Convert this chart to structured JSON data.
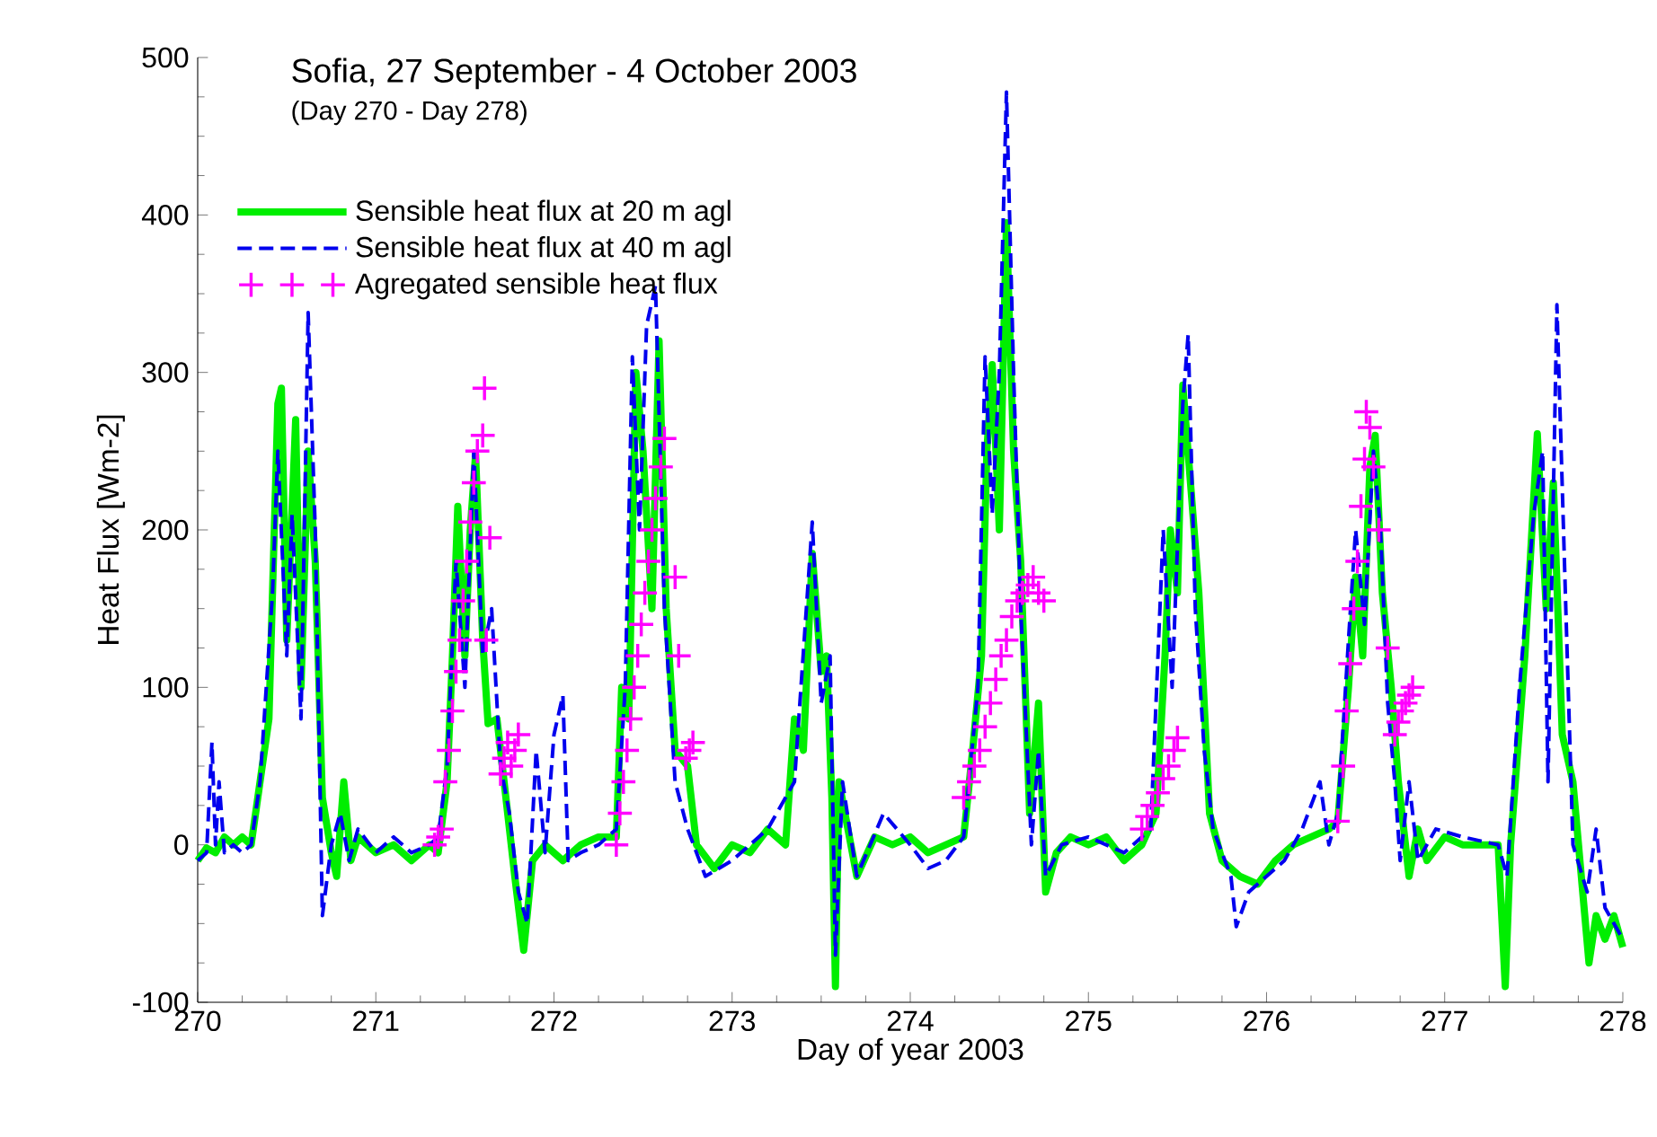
{
  "chart_data": {
    "type": "line",
    "title": "Sofia, 27 September - 4 October 2003",
    "subtitle": "(Day 270 - Day 278)",
    "xlabel": "Day of year 2003",
    "ylabel": "Heat Flux  [Wm-2]",
    "xlim": [
      270,
      278
    ],
    "xticks": [
      270,
      271,
      272,
      273,
      274,
      275,
      276,
      277,
      278
    ],
    "ylim": [
      -100,
      500
    ],
    "yticks": [
      -100,
      0,
      100,
      200,
      300,
      400,
      500
    ],
    "legend": "top left",
    "series": [
      {
        "name": "Sensible heat flux at 20 m agl",
        "color": "#00ee00",
        "line_style": "solid",
        "x": [
          270.0,
          270.05,
          270.1,
          270.15,
          270.2,
          270.25,
          270.3,
          270.35,
          270.4,
          270.45,
          270.47,
          270.5,
          270.55,
          270.58,
          270.62,
          270.66,
          270.7,
          270.75,
          270.78,
          270.82,
          270.86,
          270.9,
          271.0,
          271.1,
          271.2,
          271.3,
          271.35,
          271.4,
          271.43,
          271.46,
          271.5,
          271.53,
          271.56,
          271.6,
          271.63,
          271.68,
          271.72,
          271.78,
          271.83,
          271.88,
          271.95,
          272.05,
          272.15,
          272.25,
          272.35,
          272.38,
          272.42,
          272.46,
          272.5,
          272.55,
          272.59,
          272.63,
          272.68,
          272.75,
          272.8,
          272.9,
          273.0,
          273.1,
          273.2,
          273.3,
          273.35,
          273.4,
          273.45,
          273.5,
          273.53,
          273.56,
          273.58,
          273.6,
          273.65,
          273.7,
          273.8,
          273.9,
          274.0,
          274.1,
          274.2,
          274.3,
          274.35,
          274.4,
          274.43,
          274.46,
          274.5,
          274.54,
          274.58,
          274.62,
          274.67,
          274.72,
          274.76,
          274.82,
          274.9,
          275.0,
          275.1,
          275.2,
          275.3,
          275.38,
          275.43,
          275.46,
          275.5,
          275.53,
          275.58,
          275.62,
          275.68,
          275.75,
          275.85,
          275.95,
          276.05,
          276.15,
          276.25,
          276.35,
          276.4,
          276.46,
          276.5,
          276.54,
          276.58,
          276.61,
          276.65,
          276.7,
          276.74,
          276.8,
          276.85,
          276.9,
          277.0,
          277.1,
          277.2,
          277.3,
          277.34,
          277.37,
          277.45,
          277.52,
          277.57,
          277.61,
          277.66,
          277.72,
          277.81,
          277.85,
          277.9,
          277.95,
          278.0
        ],
        "values": [
          -10,
          -2,
          -5,
          5,
          0,
          5,
          0,
          40,
          80,
          280,
          290,
          130,
          270,
          100,
          250,
          180,
          30,
          -5,
          -20,
          40,
          -10,
          5,
          -5,
          0,
          -10,
          0,
          -5,
          40,
          120,
          215,
          120,
          200,
          248,
          130,
          77,
          80,
          40,
          -20,
          -67,
          -10,
          0,
          -10,
          0,
          5,
          5,
          100,
          80,
          300,
          250,
          150,
          320,
          150,
          60,
          50,
          0,
          -15,
          0,
          -5,
          10,
          0,
          80,
          60,
          185,
          110,
          120,
          30,
          -90,
          40,
          10,
          -20,
          5,
          0,
          5,
          -5,
          0,
          5,
          60,
          120,
          250,
          305,
          200,
          395,
          250,
          180,
          20,
          90,
          -30,
          -5,
          5,
          0,
          5,
          -10,
          0,
          20,
          120,
          200,
          160,
          292,
          220,
          160,
          20,
          -10,
          -20,
          -25,
          -10,
          0,
          5,
          10,
          15,
          100,
          170,
          120,
          240,
          260,
          160,
          100,
          40,
          -20,
          10,
          -10,
          5,
          0,
          0,
          0,
          -90,
          0,
          120,
          261,
          150,
          230,
          70,
          40,
          -75,
          -45,
          -60,
          -45,
          -65
        ]
      },
      {
        "name": "Sensible heat flux at 40 m agl",
        "color": "#0000ee",
        "line_style": "dashed",
        "x": [
          270.0,
          270.05,
          270.08,
          270.1,
          270.12,
          270.15,
          270.2,
          270.25,
          270.3,
          270.35,
          270.42,
          270.45,
          270.5,
          270.53,
          270.58,
          270.62,
          270.66,
          270.7,
          270.75,
          270.8,
          270.85,
          270.9,
          271.0,
          271.1,
          271.2,
          271.3,
          271.35,
          271.4,
          271.45,
          271.5,
          271.55,
          271.6,
          271.65,
          271.7,
          271.75,
          271.8,
          271.85,
          271.9,
          271.95,
          272.0,
          272.05,
          272.08,
          272.15,
          272.25,
          272.35,
          272.4,
          272.44,
          272.48,
          272.52,
          272.57,
          272.62,
          272.68,
          272.75,
          272.85,
          273.0,
          273.2,
          273.35,
          273.45,
          273.5,
          273.55,
          273.58,
          273.62,
          273.7,
          273.85,
          274.0,
          274.1,
          274.2,
          274.3,
          274.38,
          274.42,
          274.46,
          274.5,
          274.54,
          274.58,
          274.62,
          274.68,
          274.72,
          274.76,
          274.85,
          275.0,
          275.2,
          275.35,
          275.42,
          275.47,
          275.53,
          275.56,
          275.6,
          275.65,
          275.7,
          275.8,
          275.83,
          275.9,
          276.0,
          276.1,
          276.2,
          276.3,
          276.35,
          276.4,
          276.46,
          276.5,
          276.55,
          276.6,
          276.64,
          276.68,
          276.72,
          276.75,
          276.8,
          276.85,
          276.95,
          277.1,
          277.3,
          277.35,
          277.42,
          277.5,
          277.55,
          277.58,
          277.63,
          277.68,
          277.72,
          277.8,
          277.85,
          277.9,
          277.95,
          278.0
        ],
        "values": [
          -10,
          -5,
          65,
          0,
          40,
          -5,
          0,
          -5,
          0,
          40,
          160,
          250,
          120,
          210,
          80,
          338,
          200,
          -45,
          0,
          20,
          -10,
          10,
          -5,
          5,
          -5,
          0,
          5,
          50,
          180,
          100,
          250,
          120,
          150,
          50,
          20,
          -30,
          -50,
          60,
          -5,
          70,
          95,
          -10,
          -5,
          0,
          10,
          100,
          310,
          200,
          330,
          355,
          150,
          40,
          10,
          -20,
          -10,
          10,
          40,
          205,
          90,
          120,
          -70,
          40,
          -20,
          20,
          0,
          -15,
          -10,
          5,
          100,
          310,
          210,
          300,
          478,
          300,
          150,
          0,
          60,
          -20,
          0,
          5,
          -5,
          10,
          200,
          100,
          280,
          324,
          150,
          60,
          10,
          -20,
          -52,
          -30,
          -20,
          -10,
          10,
          40,
          0,
          20,
          130,
          200,
          140,
          250,
          200,
          90,
          40,
          -10,
          40,
          -10,
          10,
          5,
          0,
          -20,
          100,
          210,
          250,
          40,
          343,
          150,
          0,
          -30,
          10,
          -40,
          -50,
          -60
        ]
      },
      {
        "name": "Agregated sensible heat flux",
        "type": "scatter",
        "color": "#ff00ff",
        "marker": "cross",
        "x": [
          271.33,
          271.35,
          271.37,
          271.39,
          271.41,
          271.43,
          271.45,
          271.47,
          271.49,
          271.51,
          271.53,
          271.55,
          271.57,
          271.6,
          271.61,
          271.62,
          271.64,
          271.7,
          271.72,
          271.74,
          271.76,
          271.78,
          271.8,
          272.35,
          272.37,
          272.39,
          272.41,
          272.43,
          272.45,
          272.47,
          272.49,
          272.51,
          272.53,
          272.55,
          272.57,
          272.6,
          272.62,
          272.68,
          272.7,
          272.74,
          272.76,
          272.78,
          274.3,
          274.33,
          274.36,
          274.39,
          274.42,
          274.45,
          274.48,
          274.51,
          274.54,
          274.57,
          274.6,
          274.63,
          274.66,
          274.69,
          274.72,
          274.75,
          275.3,
          275.33,
          275.36,
          275.39,
          275.42,
          275.45,
          275.48,
          275.5,
          276.4,
          276.43,
          276.45,
          276.47,
          276.49,
          276.51,
          276.53,
          276.55,
          276.56,
          276.58,
          276.6,
          276.63,
          276.68,
          276.72,
          276.74,
          276.76,
          276.78,
          276.8,
          276.82
        ],
        "values": [
          0,
          5,
          10,
          40,
          60,
          85,
          110,
          130,
          155,
          180,
          205,
          230,
          250,
          260,
          290,
          130,
          195,
          45,
          55,
          65,
          50,
          60,
          70,
          0,
          20,
          40,
          60,
          80,
          100,
          120,
          140,
          160,
          180,
          200,
          220,
          240,
          258,
          170,
          120,
          55,
          60,
          65,
          30,
          40,
          50,
          60,
          75,
          90,
          105,
          120,
          130,
          145,
          155,
          160,
          165,
          170,
          160,
          155,
          10,
          18,
          25,
          33,
          42,
          50,
          60,
          68,
          15,
          50,
          85,
          115,
          150,
          180,
          215,
          245,
          275,
          265,
          240,
          200,
          125,
          70,
          78,
          85,
          90,
          95,
          100
        ]
      }
    ]
  }
}
